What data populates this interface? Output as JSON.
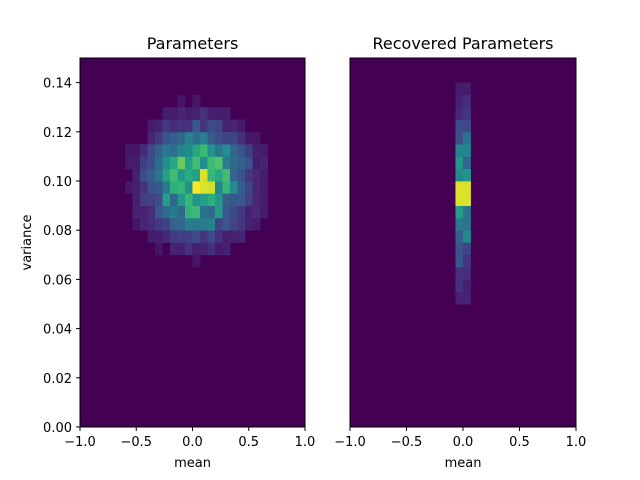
{
  "colors": {
    "background_bin": "#440154",
    "colormap": "viridis"
  },
  "chart_data": [
    {
      "type": "heatmap",
      "title": "Parameters",
      "xlabel": "mean",
      "ylabel": "variance",
      "xlim": [
        -1.0,
        1.0
      ],
      "ylim": [
        0.0,
        0.15
      ],
      "x_ticks": [
        "−1.0",
        "−0.5",
        "0.0",
        "0.5",
        "1.0"
      ],
      "y_ticks": [
        "0.00",
        "0.02",
        "0.04",
        "0.06",
        "0.08",
        "0.10",
        "0.12",
        "0.14"
      ],
      "distribution": {
        "center_mean": 0.05,
        "center_variance": 0.1,
        "spread_mean": 0.28,
        "spread_variance": 0.014,
        "peak_mean": 0.08,
        "peak_variance": 0.1,
        "max_density": 1.0
      }
    },
    {
      "type": "heatmap",
      "title": "Recovered Parameters",
      "xlabel": "mean",
      "ylabel": "",
      "xlim": [
        -1.0,
        1.0
      ],
      "ylim": [
        0.0,
        0.15
      ],
      "x_ticks": [
        "−1.0",
        "−0.5",
        "0.0",
        "0.5",
        "1.0"
      ],
      "y_ticks": [],
      "distribution": {
        "center_mean": 0.0,
        "center_variance": 0.095,
        "spread_mean": 0.035,
        "spread_variance": 0.022,
        "peak_mean": 0.0,
        "peak_variance": 0.095,
        "max_density": 1.0
      }
    }
  ]
}
